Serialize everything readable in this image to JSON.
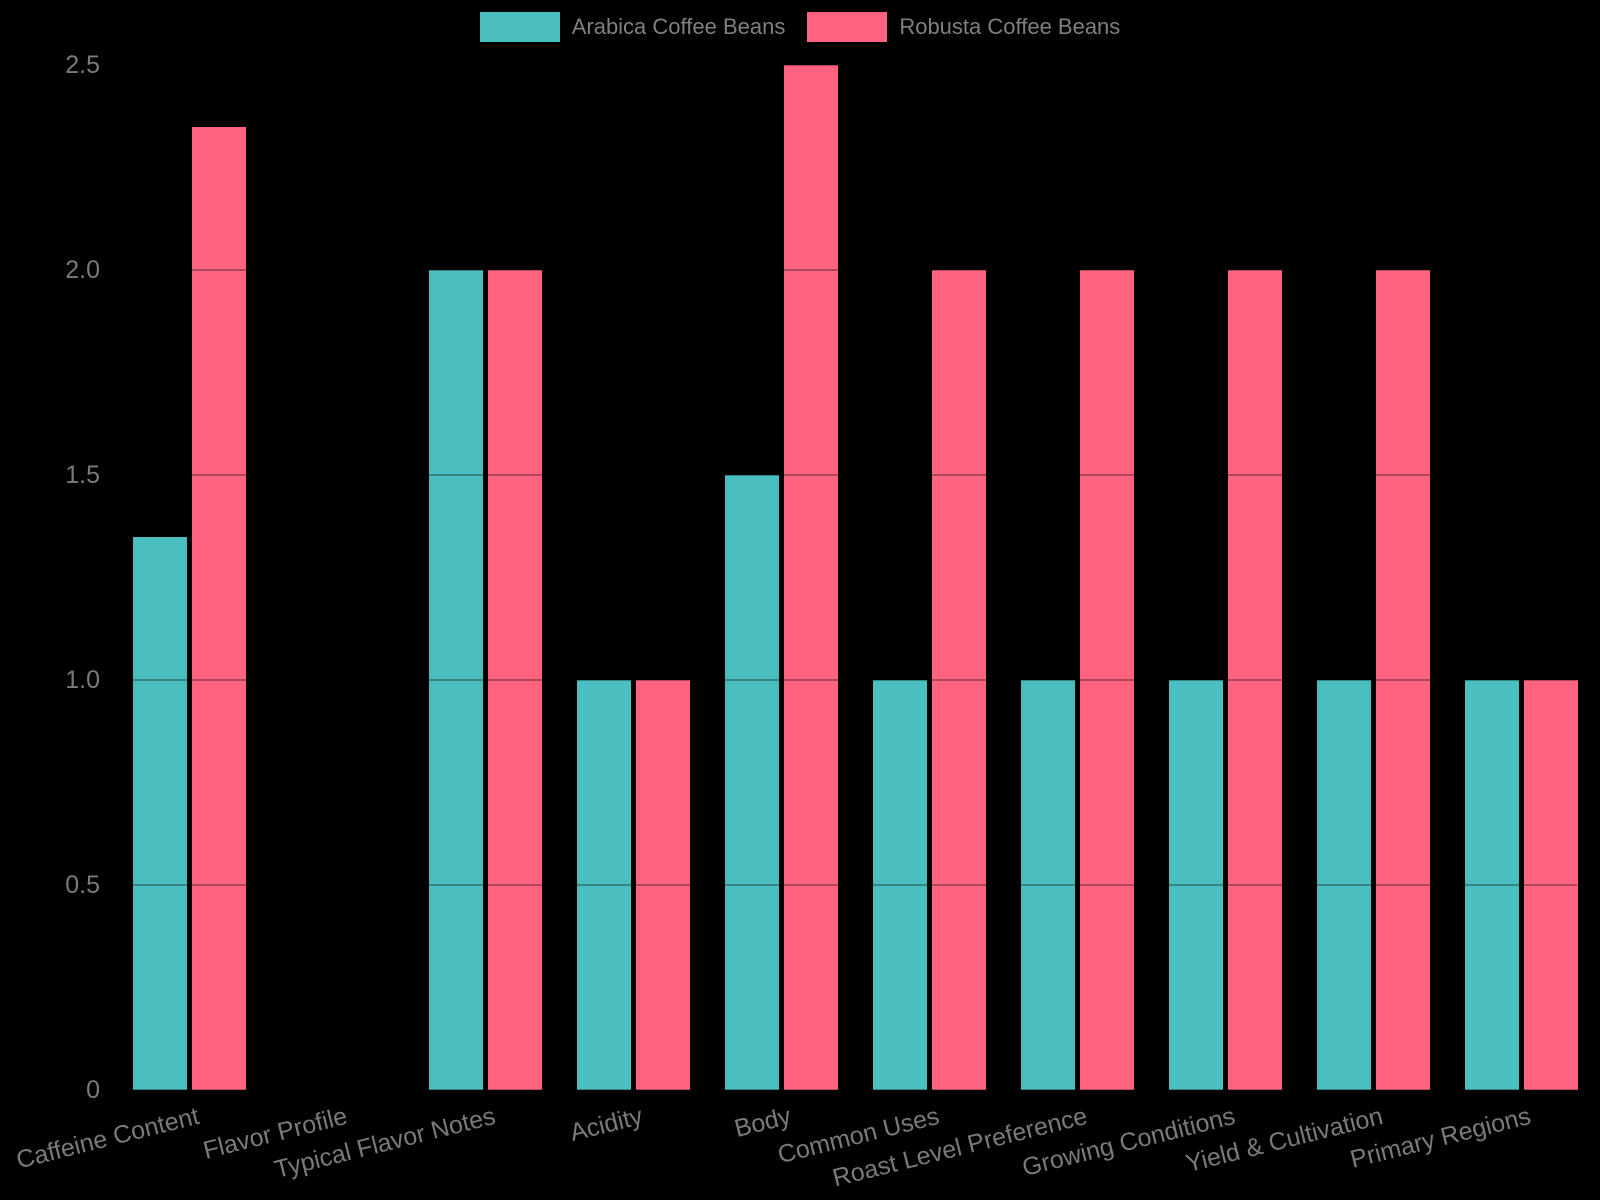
{
  "chart_data": {
    "type": "bar",
    "title": "",
    "xlabel": "",
    "ylabel": "",
    "categories": [
      "Caffeine Content",
      "Flavor Profile",
      "Typical Flavor Notes",
      "Acidity",
      "Body",
      "Common Uses",
      "Roast Level Preference",
      "Growing Conditions",
      "Yield & Cultivation",
      "Primary Regions"
    ],
    "series": [
      {
        "name": "Arabica Coffee Beans",
        "color": "#4BBFBF",
        "values": [
          1.35,
          0,
          2.0,
          1.0,
          1.5,
          1.0,
          1.0,
          1.0,
          1.0,
          1.0
        ]
      },
      {
        "name": "Robusta Coffee Beans",
        "color": "#FF6380",
        "values": [
          2.35,
          0,
          2.0,
          1.0,
          2.5,
          2.0,
          2.0,
          2.0,
          2.0,
          1.0
        ]
      }
    ],
    "ylim": [
      0,
      2.5
    ],
    "y_ticks": [
      {
        "label": "0",
        "value": 0
      },
      {
        "label": "0.5",
        "value": 0.5
      },
      {
        "label": "1.0",
        "value": 1.0
      },
      {
        "label": "1.5",
        "value": 1.5
      },
      {
        "label": "2.0",
        "value": 2.0
      },
      {
        "label": "2.5",
        "value": 2.5
      }
    ],
    "grid": true,
    "legend_position": "top-center",
    "background_color": "#000000",
    "text_color": "#7a7a7a",
    "x_tick_rotation_deg": -14
  }
}
